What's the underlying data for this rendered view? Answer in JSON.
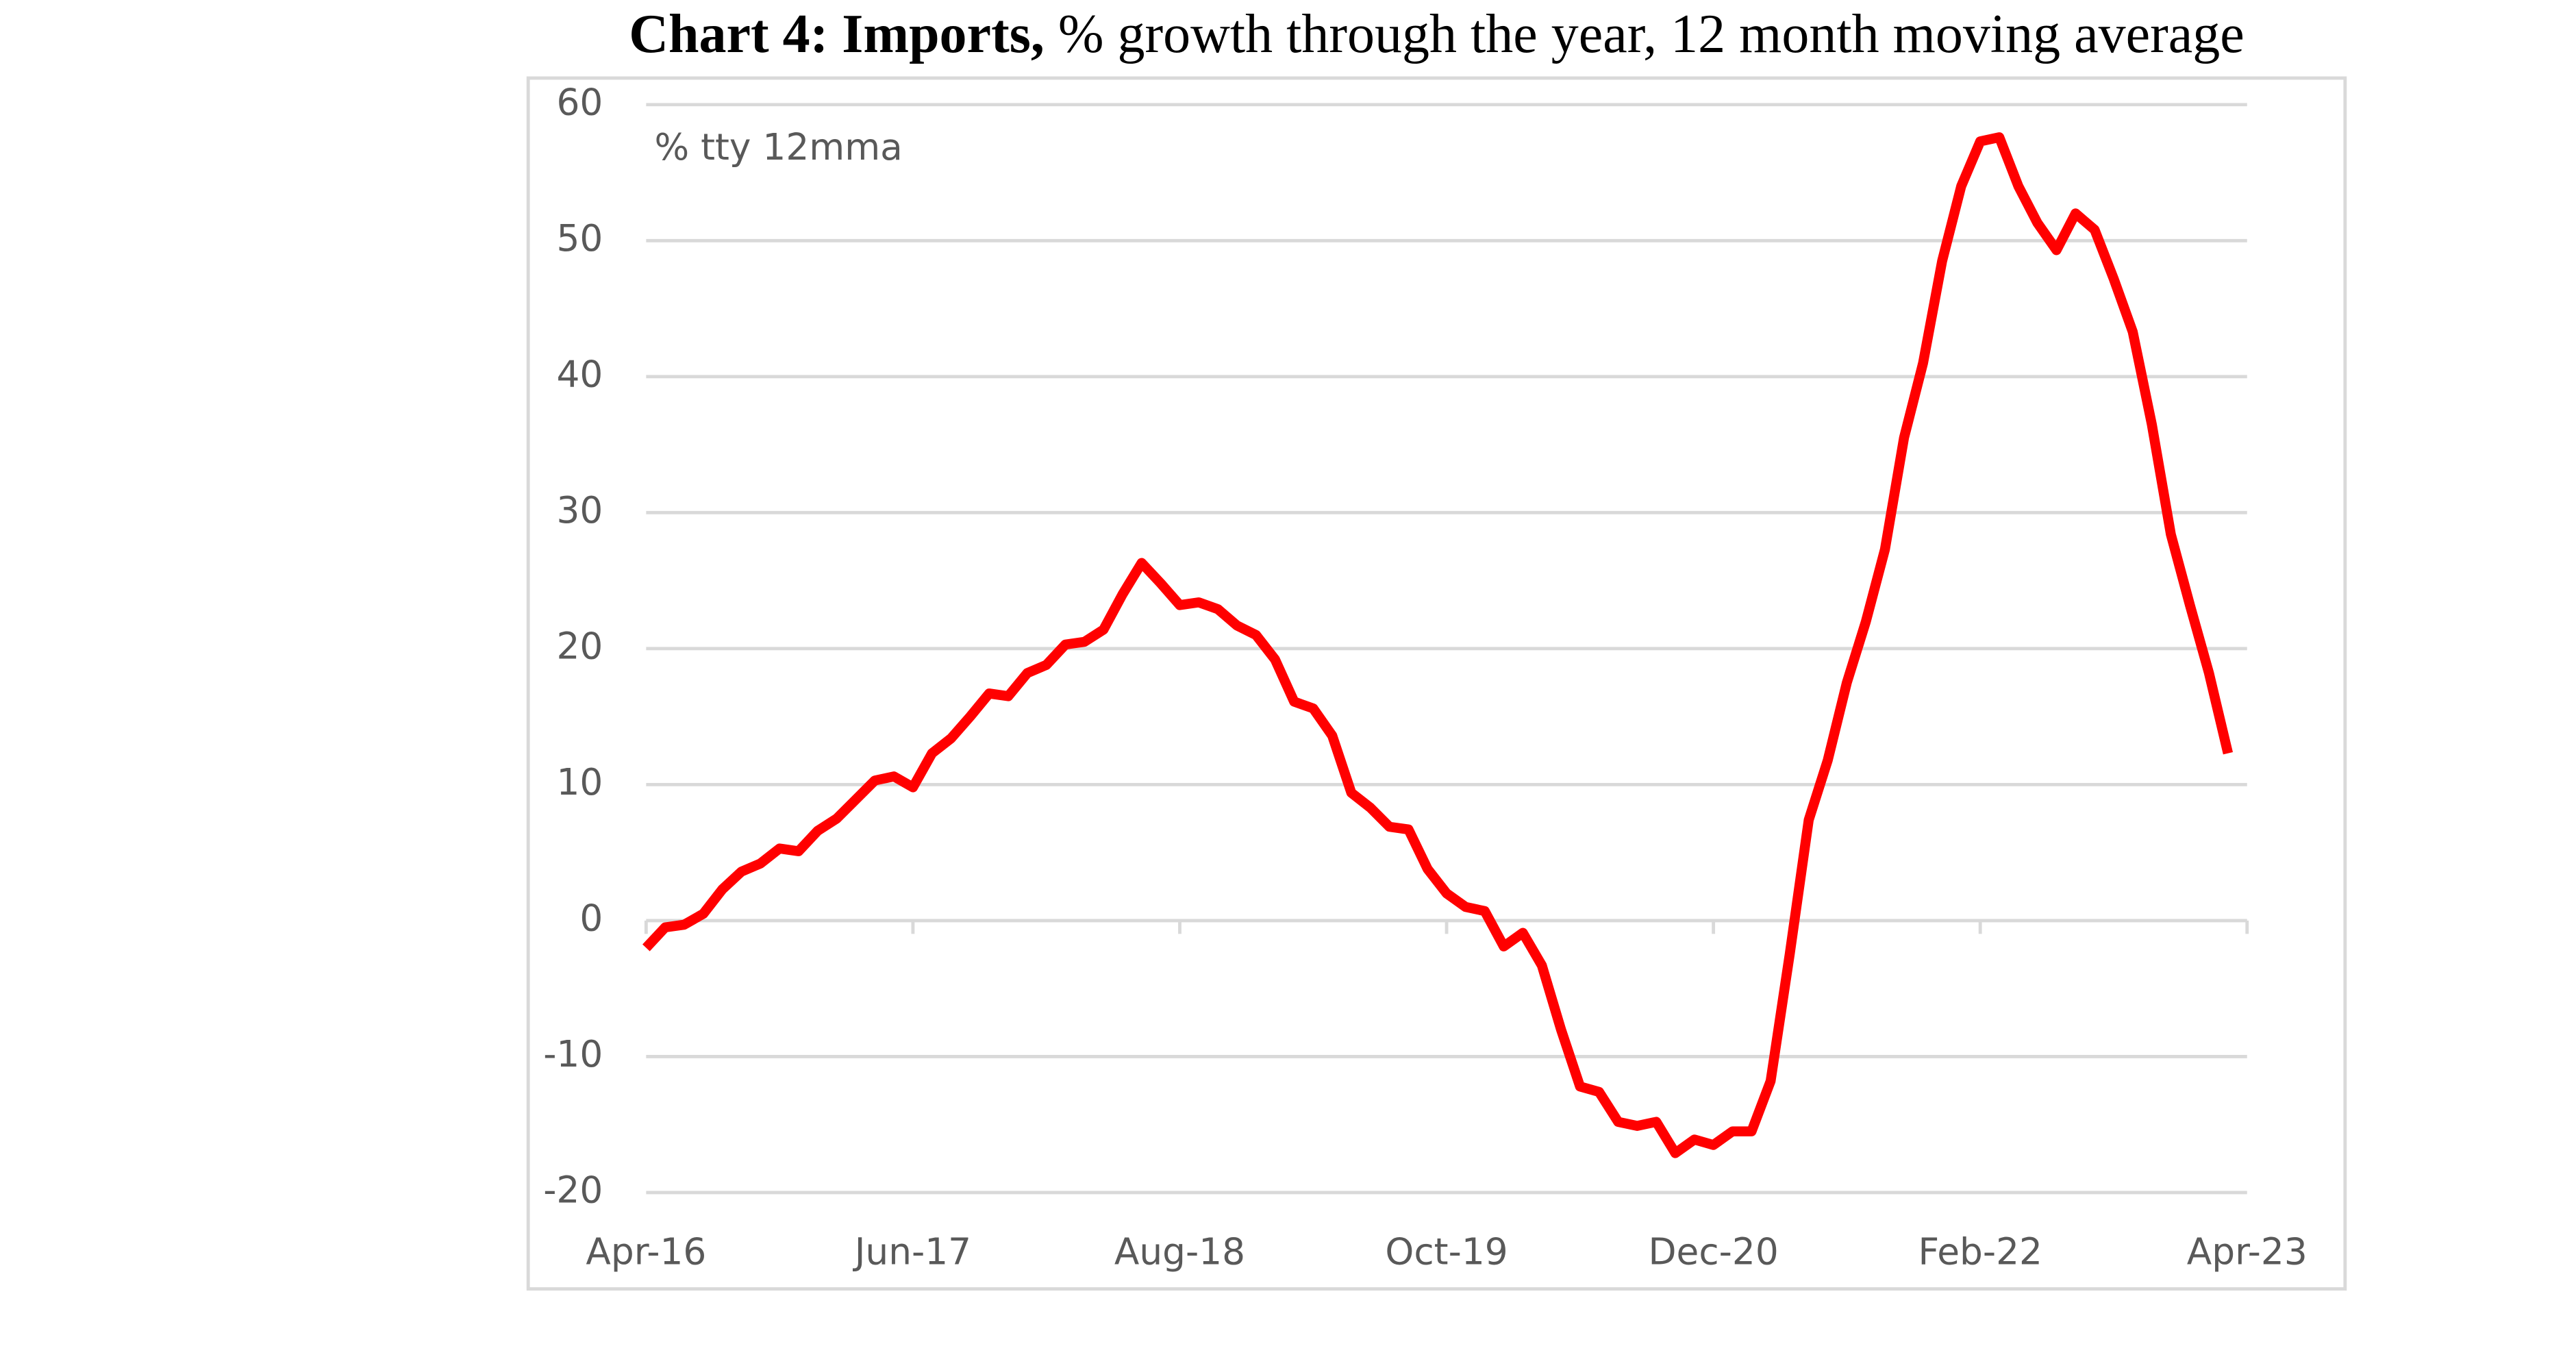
{
  "chart_data": {
    "type": "line",
    "title_bold": "Chart 4: Imports,",
    "title": "% growth through the year, 12 month moving average",
    "annotation": "% tty 12mma",
    "categories": [
      "Apr-16",
      null,
      null,
      null,
      null,
      null,
      null,
      null,
      null,
      null,
      null,
      null,
      null,
      null,
      "Jun-17",
      null,
      null,
      null,
      null,
      null,
      null,
      null,
      null,
      null,
      null,
      null,
      null,
      null,
      "Aug-18",
      null,
      null,
      null,
      null,
      null,
      null,
      null,
      null,
      null,
      null,
      null,
      null,
      null,
      "Oct-19",
      null,
      null,
      null,
      null,
      null,
      null,
      null,
      null,
      null,
      null,
      null,
      null,
      null,
      "Dec-20",
      null,
      null,
      null,
      null,
      null,
      null,
      null,
      null,
      null,
      null,
      null,
      null,
      null,
      "Feb-22",
      null,
      null,
      null,
      null,
      null,
      null,
      null,
      null,
      null,
      null,
      null,
      null,
      null,
      "Apr-23"
    ],
    "series": [
      {
        "name": "Imports",
        "color": "#ff0000",
        "values": [
          -2,
          -0.5,
          -0.3,
          0.5,
          2.3,
          3.6,
          4.2,
          5.3,
          5.1,
          6.6,
          7.5,
          8.9,
          10.3,
          10.6,
          9.8,
          12.3,
          13.4,
          15,
          16.7,
          16.5,
          18.2,
          18.8,
          20.3,
          20.5,
          21.4,
          24,
          26.3,
          24.8,
          23.2,
          23.4,
          22.9,
          21.7,
          21,
          19.2,
          16.1,
          15.6,
          13.6,
          9.4,
          8.3,
          6.9,
          6.7,
          3.8,
          2,
          1,
          0.7,
          -1.9,
          -0.9,
          -3.3,
          -8,
          -12.2,
          -12.6,
          -14.8,
          -15.1,
          -14.8,
          -17.1,
          -16.1,
          -16.5,
          -15.5,
          -15.5,
          -11.8,
          -2.5,
          7.4,
          11.8,
          17.5,
          22,
          27.3,
          35.5,
          41,
          48.5,
          54,
          57.3,
          57.6,
          54,
          51.3,
          49.3,
          52,
          50.8,
          47.2,
          43.3,
          36.5,
          28.4,
          23.2,
          18.2,
          12.3,
          null
        ]
      }
    ],
    "ylim": [
      -20,
      60
    ],
    "yticks": [
      -20,
      -10,
      0,
      10,
      20,
      30,
      40,
      50,
      60
    ],
    "grid": true
  }
}
